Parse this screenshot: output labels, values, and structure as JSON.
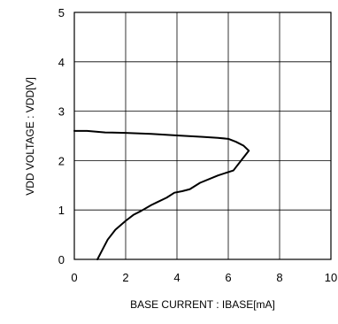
{
  "chart_data": {
    "type": "line",
    "title": "",
    "xlabel": "BASE CURRENT : IBASE[mA]",
    "ylabel": "VDD VOLTAGE : VDD[V]",
    "xlim": [
      0,
      10
    ],
    "ylim": [
      0,
      5
    ],
    "xticks": [
      "0",
      "2",
      "4",
      "6",
      "8",
      "10"
    ],
    "yticks": [
      "0",
      "1",
      "2",
      "3",
      "4",
      "5"
    ],
    "grid": true,
    "series": [
      {
        "x": [
          0.0,
          0.5,
          1.2,
          2.0,
          3.0,
          4.0,
          5.0,
          5.6,
          6.0,
          6.3,
          6.6,
          6.8,
          6.5,
          6.2,
          5.6,
          4.9,
          4.5,
          4.2,
          3.9,
          3.6,
          3.2,
          3.0,
          2.6,
          2.3,
          2.0,
          1.6,
          1.3,
          1.1,
          0.9
        ],
        "y": [
          2.6,
          2.6,
          2.57,
          2.56,
          2.54,
          2.51,
          2.48,
          2.46,
          2.44,
          2.38,
          2.3,
          2.2,
          2.0,
          1.8,
          1.7,
          1.55,
          1.42,
          1.38,
          1.35,
          1.25,
          1.15,
          1.1,
          0.98,
          0.9,
          0.78,
          0.6,
          0.4,
          0.2,
          0.0
        ]
      }
    ],
    "colors": {
      "line": "#000000",
      "grid": "#000000",
      "frame": "#000000"
    }
  }
}
